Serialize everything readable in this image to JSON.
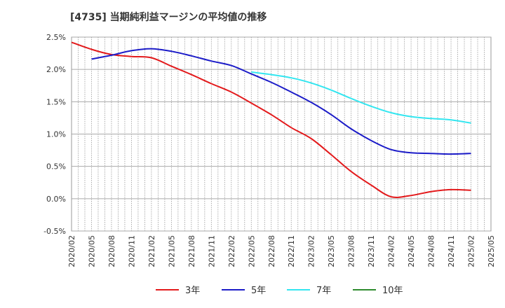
{
  "chart_data": {
    "type": "line",
    "title": "[4735]  当期純利益マージンの平均値の推移",
    "xlabel": "",
    "ylabel": "",
    "ylim": [
      -0.5,
      2.5
    ],
    "yticks": [
      "2.5%",
      "2.0%",
      "1.5%",
      "1.0%",
      "0.5%",
      "0.0%",
      "-0.5%"
    ],
    "ytick_values": [
      2.5,
      2.0,
      1.5,
      1.0,
      0.5,
      0.0,
      -0.5
    ],
    "x": [
      "2020/02",
      "2020/05",
      "2020/08",
      "2020/11",
      "2021/02",
      "2021/05",
      "2021/08",
      "2021/11",
      "2022/02",
      "2022/05",
      "2022/08",
      "2022/11",
      "2023/02",
      "2023/05",
      "2023/08",
      "2023/11",
      "2024/02",
      "2024/05",
      "2024/08",
      "2024/11",
      "2025/02",
      "2025/05"
    ],
    "grid": true,
    "legend_position": "bottom",
    "series": [
      {
        "name": "3年",
        "color": "#e31a1c",
        "values": [
          2.42,
          2.31,
          2.23,
          2.2,
          2.18,
          2.05,
          1.92,
          1.78,
          1.65,
          1.48,
          1.3,
          1.1,
          0.93,
          0.68,
          0.42,
          0.21,
          0.03,
          0.05,
          0.11,
          0.14,
          0.13,
          null
        ]
      },
      {
        "name": "5年",
        "color": "#1c1cc8",
        "values": [
          null,
          2.16,
          2.22,
          2.29,
          2.32,
          2.28,
          2.21,
          2.13,
          2.06,
          1.93,
          1.8,
          1.65,
          1.49,
          1.3,
          1.08,
          0.9,
          0.76,
          0.71,
          0.7,
          0.69,
          0.7,
          null
        ]
      },
      {
        "name": "7年",
        "color": "#33e6f0",
        "values": [
          null,
          null,
          null,
          null,
          null,
          null,
          null,
          null,
          null,
          1.96,
          1.92,
          1.87,
          1.79,
          1.68,
          1.55,
          1.43,
          1.33,
          1.27,
          1.24,
          1.22,
          1.17,
          null
        ]
      },
      {
        "name": "10年",
        "color": "#2e8b2e",
        "values": [
          null,
          null,
          null,
          null,
          null,
          null,
          null,
          null,
          null,
          null,
          null,
          null,
          null,
          null,
          null,
          null,
          null,
          null,
          null,
          null,
          null,
          null
        ]
      }
    ]
  }
}
